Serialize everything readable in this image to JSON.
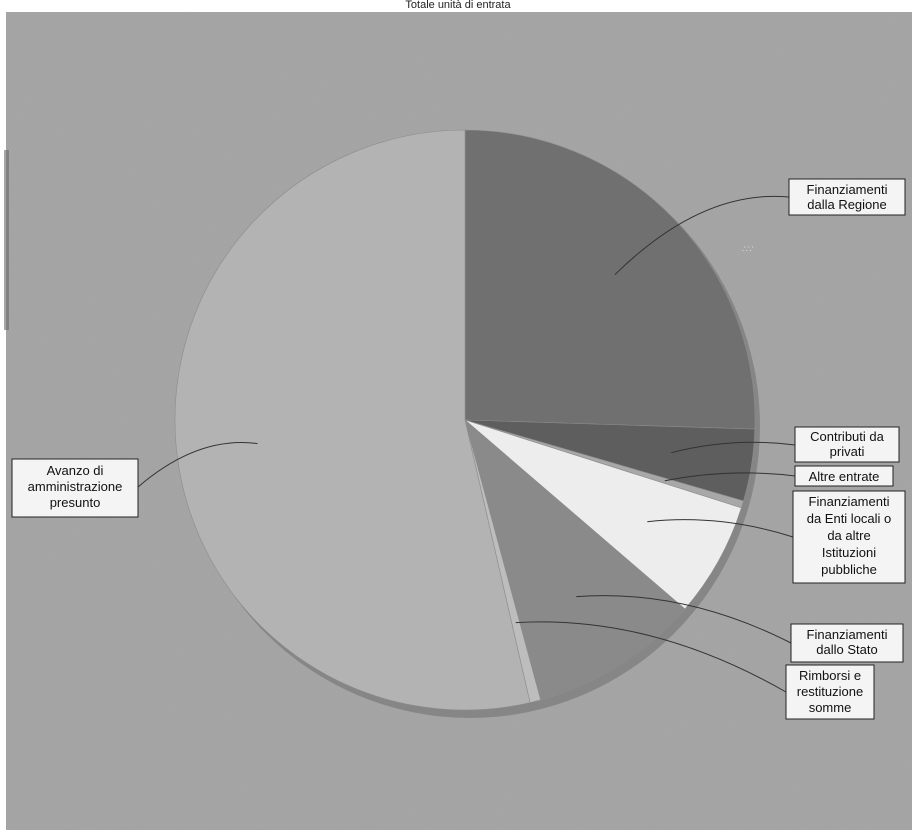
{
  "chart_data": {
    "type": "pie",
    "title": "Totale unità di entrata",
    "slices": [
      {
        "label": "Finanziamenti dalla Regione",
        "value": 25.5,
        "color": "#707070"
      },
      {
        "label": "Contributi da privati",
        "value": 4.0,
        "color": "#5e5e5e"
      },
      {
        "label": "Altre entrate",
        "value": 0.4,
        "color": "#a8a8a8"
      },
      {
        "label": "Finanziamenti da Enti locali o da altre Istituzioni pubbliche",
        "value": 6.4,
        "color": "#ededed"
      },
      {
        "label": "Finanziamenti dallo Stato",
        "value": 9.5,
        "color": "#8a8a8a"
      },
      {
        "label": "Rimborsi e restituzione somme",
        "value": 0.6,
        "color": "#bdbdbd"
      },
      {
        "label": "Avanzo di amministrazione presunto",
        "value": 53.6,
        "color": "#b3b3b3"
      }
    ],
    "legend": "callout-labels"
  }
}
